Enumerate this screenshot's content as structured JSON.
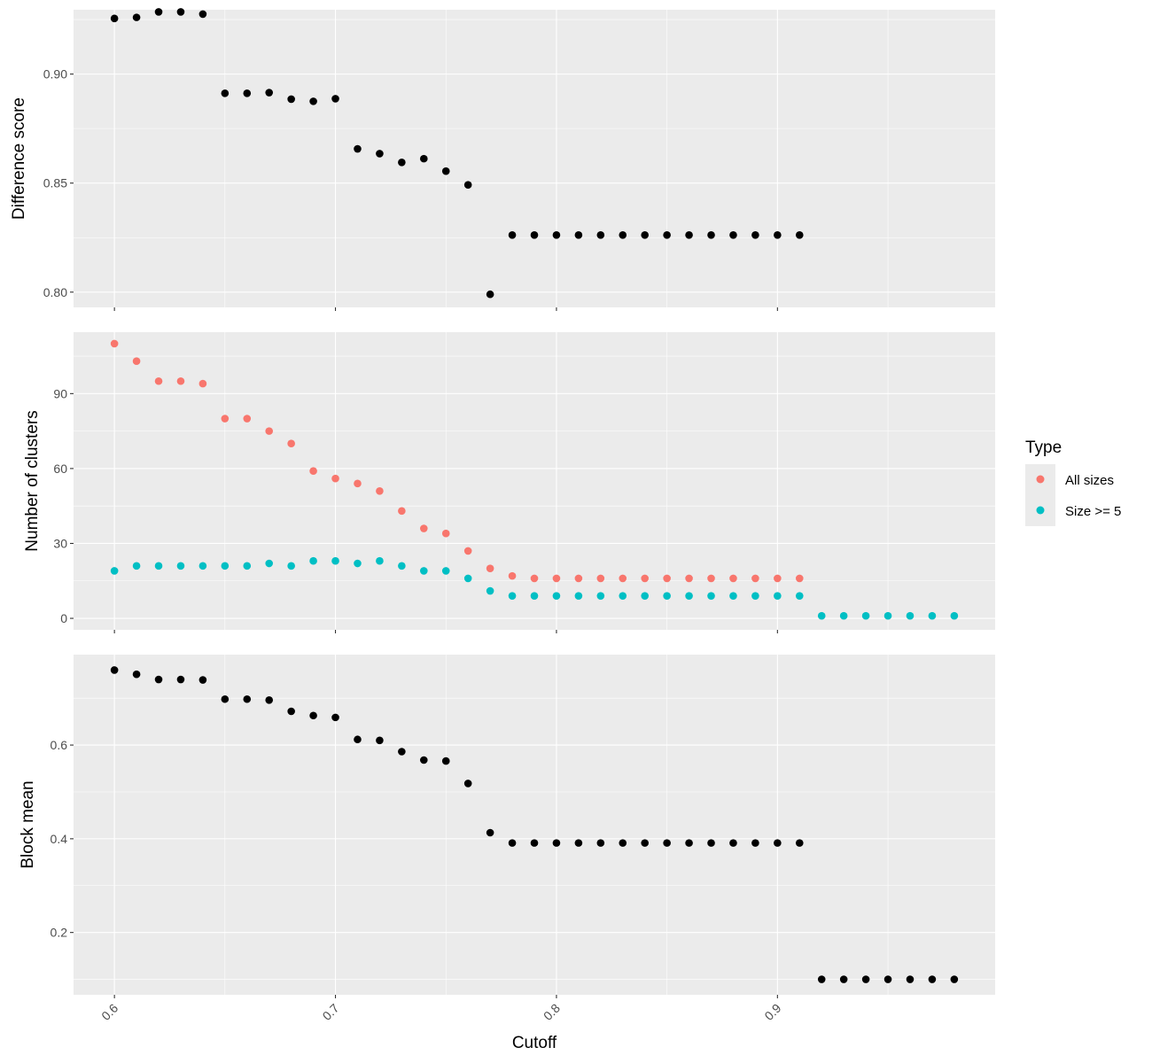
{
  "figure": {
    "xlabel": "Cutoff",
    "x_ticks": [
      0.6,
      0.7,
      0.8,
      0.9
    ],
    "x_tick_labels": [
      "0.6",
      "0.7",
      "0.8",
      "0.9"
    ],
    "xlim": [
      0.5815,
      0.9985
    ],
    "panel_background": "#ebebeb",
    "grid_color": "#ffffff"
  },
  "legend": {
    "title": "Type",
    "entries": [
      {
        "label": "All sizes",
        "color": "#f8766d"
      },
      {
        "label": "Size >= 5",
        "color": "#00bfc4"
      }
    ]
  },
  "chart_data": [
    {
      "type": "scatter",
      "ylabel": "Difference score",
      "ylim": [
        0.793,
        0.9295
      ],
      "y_ticks": [
        0.8,
        0.85,
        0.9
      ],
      "y_tick_labels": [
        "0.80",
        "0.85",
        "0.90"
      ],
      "series": [
        {
          "color": "#000000",
          "x": [
            0.6,
            0.61,
            0.62,
            0.63,
            0.64,
            0.65,
            0.66,
            0.67,
            0.68,
            0.69,
            0.7,
            0.71,
            0.72,
            0.73,
            0.74,
            0.75,
            0.76,
            0.77,
            0.78,
            0.79,
            0.8,
            0.81,
            0.82,
            0.83,
            0.84,
            0.85,
            0.86,
            0.87,
            0.88,
            0.89,
            0.9,
            0.91
          ],
          "y": [
            0.9255,
            0.926,
            0.9285,
            0.9285,
            0.9275,
            0.8912,
            0.8912,
            0.8915,
            0.8885,
            0.8875,
            0.8887,
            0.8657,
            0.8635,
            0.8595,
            0.8612,
            0.8555,
            0.8492,
            0.799,
            0.8262,
            0.8262,
            0.8262,
            0.8262,
            0.8262,
            0.8262,
            0.8262,
            0.8262,
            0.8262,
            0.8262,
            0.8262,
            0.8262,
            0.8262,
            0.8262
          ]
        }
      ]
    },
    {
      "type": "scatter",
      "ylabel": "Number of clusters",
      "ylim": [
        -4.6,
        114.6
      ],
      "y_ticks": [
        0,
        30,
        60,
        90
      ],
      "y_tick_labels": [
        "0",
        "30",
        "60",
        "90"
      ],
      "series": [
        {
          "name": "All sizes",
          "color": "#f8766d",
          "x": [
            0.6,
            0.61,
            0.62,
            0.63,
            0.64,
            0.65,
            0.66,
            0.67,
            0.68,
            0.69,
            0.7,
            0.71,
            0.72,
            0.73,
            0.74,
            0.75,
            0.76,
            0.77,
            0.78,
            0.79,
            0.8,
            0.81,
            0.82,
            0.83,
            0.84,
            0.85,
            0.86,
            0.87,
            0.88,
            0.89,
            0.9,
            0.91
          ],
          "y": [
            110,
            103,
            95,
            95,
            94,
            80,
            80,
            75,
            70,
            59,
            56,
            54,
            51,
            43,
            36,
            34,
            27,
            20,
            17,
            16,
            16,
            16,
            16,
            16,
            16,
            16,
            16,
            16,
            16,
            16,
            16,
            16
          ]
        },
        {
          "name": "Size >= 5",
          "color": "#00bfc4",
          "x": [
            0.6,
            0.61,
            0.62,
            0.63,
            0.64,
            0.65,
            0.66,
            0.67,
            0.68,
            0.69,
            0.7,
            0.71,
            0.72,
            0.73,
            0.74,
            0.75,
            0.76,
            0.77,
            0.78,
            0.79,
            0.8,
            0.81,
            0.82,
            0.83,
            0.84,
            0.85,
            0.86,
            0.87,
            0.88,
            0.89,
            0.9,
            0.91,
            0.92,
            0.93,
            0.94,
            0.95,
            0.96,
            0.97,
            0.98
          ],
          "y": [
            19,
            21,
            21,
            21,
            21,
            21,
            21,
            22,
            21,
            23,
            23,
            22,
            23,
            21,
            19,
            19,
            16,
            11,
            9,
            9,
            9,
            9,
            9,
            9,
            9,
            9,
            9,
            9,
            9,
            9,
            9,
            9,
            1,
            1,
            1,
            1,
            1,
            1,
            1
          ]
        }
      ]
    },
    {
      "type": "scatter",
      "ylabel": "Block mean",
      "ylim": [
        0.067,
        0.793
      ],
      "y_ticks": [
        0.2,
        0.4,
        0.6
      ],
      "y_tick_labels": [
        "0.2",
        "0.4",
        "0.6"
      ],
      "series": [
        {
          "color": "#000000",
          "x": [
            0.6,
            0.61,
            0.62,
            0.63,
            0.64,
            0.65,
            0.66,
            0.67,
            0.68,
            0.69,
            0.7,
            0.71,
            0.72,
            0.73,
            0.74,
            0.75,
            0.76,
            0.77,
            0.78,
            0.79,
            0.8,
            0.81,
            0.82,
            0.83,
            0.84,
            0.85,
            0.86,
            0.87,
            0.88,
            0.89,
            0.9,
            0.91,
            0.92,
            0.93,
            0.94,
            0.95,
            0.96,
            0.97,
            0.98
          ],
          "y": [
            0.76,
            0.751,
            0.74,
            0.74,
            0.739,
            0.698,
            0.698,
            0.696,
            0.672,
            0.663,
            0.659,
            0.612,
            0.61,
            0.586,
            0.568,
            0.566,
            0.518,
            0.413,
            0.391,
            0.391,
            0.391,
            0.391,
            0.391,
            0.391,
            0.391,
            0.391,
            0.391,
            0.391,
            0.391,
            0.391,
            0.391,
            0.391,
            0.1,
            0.1,
            0.1,
            0.1,
            0.1,
            0.1,
            0.1
          ]
        }
      ]
    }
  ]
}
